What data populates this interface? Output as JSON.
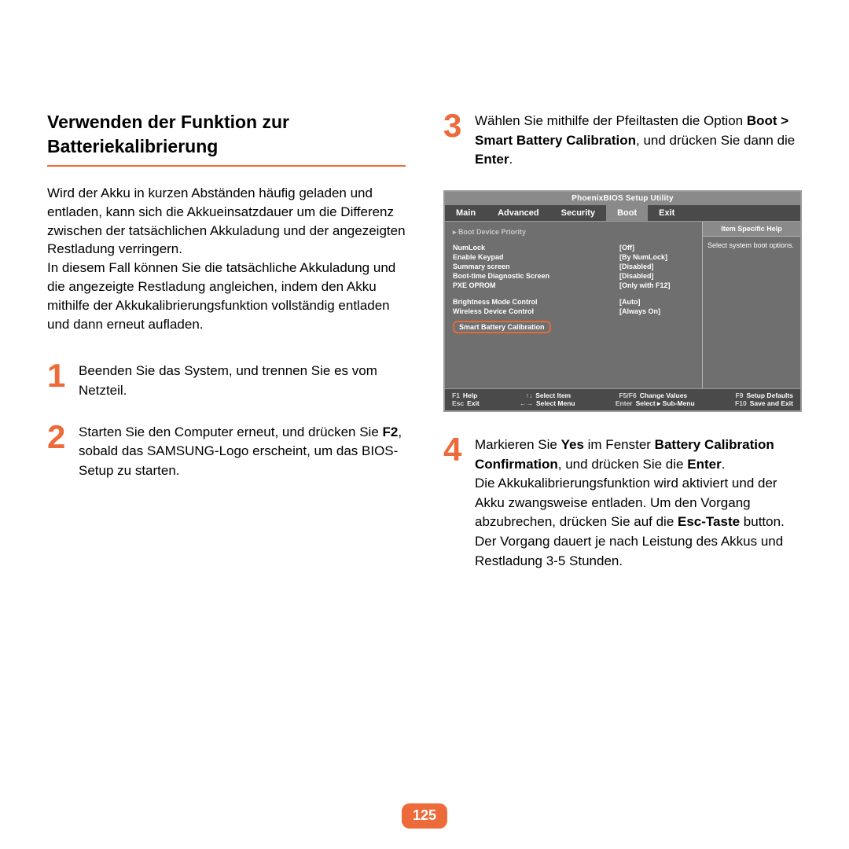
{
  "page_number": "125",
  "left": {
    "title": "Verwenden der Funktion zur Batteriekalibrierung",
    "intro_p1": "Wird der Akku in kurzen Abständen häufig geladen und entladen, kann sich die Akkueinsatzdauer um die Differenz zwischen der tatsächlichen Akkuladung und der angezeigten Restladung verringern.",
    "intro_p2": "In diesem Fall können Sie die tatsächliche Akkuladung und die angezeigte Restladung angleichen, indem den Akku mithilfe der Akkukalibrierungsfunktion vollständig entladen und dann erneut aufladen.",
    "step1": "Beenden Sie das System, und trennen Sie es vom Netzteil.",
    "step2_a": "Starten Sie den Computer erneut, und drücken Sie ",
    "step2_b": "F2",
    "step2_c": ", sobald das SAMSUNG-Logo erscheint, um das BIOS-Setup zu starten."
  },
  "right": {
    "step3_a": "Wählen Sie mithilfe der Pfeiltasten die Option ",
    "step3_b": "Boot > Smart Battery Calibration",
    "step3_c": ", und drücken Sie dann die ",
    "step3_d": "Enter",
    "step3_e": ".",
    "step4_a": "Markieren Sie ",
    "step4_b": "Yes",
    "step4_c": " im Fenster ",
    "step4_d": "Battery Calibration Confirmation",
    "step4_e": ", und drücken Sie die ",
    "step4_f": "Enter",
    "step4_g": ".",
    "step4_p2a": "Die Akkukalibrierungsfunktion wird aktiviert und der Akku zwangsweise entladen. Um den Vorgang abzubrechen, drücken Sie auf die ",
    "step4_p2b": "Esc-Taste",
    "step4_p2c": " button. Der Vorgang dauert je nach Leistung des Akkus und Restladung 3-5 Stunden."
  },
  "bios": {
    "title": "PhoenixBIOS Setup Utility",
    "tabs": [
      "Main",
      "Advanced",
      "Security",
      "Boot",
      "Exit"
    ],
    "active_tab_index": 3,
    "help_head": "Item Specific Help",
    "help_body": "Select system boot options.",
    "priority": "Boot Device Priority",
    "rows": [
      {
        "label": "NumLock",
        "value": "[Off]"
      },
      {
        "label": "Enable Keypad",
        "value": "[By NumLock]"
      },
      {
        "label": "Summary screen",
        "value": "[Disabled]"
      },
      {
        "label": "Boot-time Diagnostic Screen",
        "value": "[Disabled]"
      },
      {
        "label": "PXE OPROM",
        "value": "[Only with F12]"
      }
    ],
    "rows2": [
      {
        "label": "Brightness Mode Control",
        "value": "[Auto]"
      },
      {
        "label": "Wireless Device Control",
        "value": "[Always On]"
      }
    ],
    "highlight": "Smart Battery Calibration",
    "footer": [
      [
        {
          "k": "F1",
          "t": "Help"
        },
        {
          "k": "↑↓",
          "t": "Select Item"
        },
        {
          "k": "F5/F6",
          "t": "Change Values"
        },
        {
          "k": "F9",
          "t": "Setup Defaults"
        }
      ],
      [
        {
          "k": "Esc",
          "t": "Exit"
        },
        {
          "k": "←→",
          "t": "Select Menu"
        },
        {
          "k": "Enter",
          "t": "Select ▸ Sub-Menu"
        },
        {
          "k": "F10",
          "t": "Save and Exit"
        }
      ]
    ]
  },
  "colors": {
    "accent": "#ed6a3a",
    "bios_bg": "#6f6f6f",
    "bios_dark": "#4a4a4a",
    "bios_light": "#8a8a8a"
  }
}
